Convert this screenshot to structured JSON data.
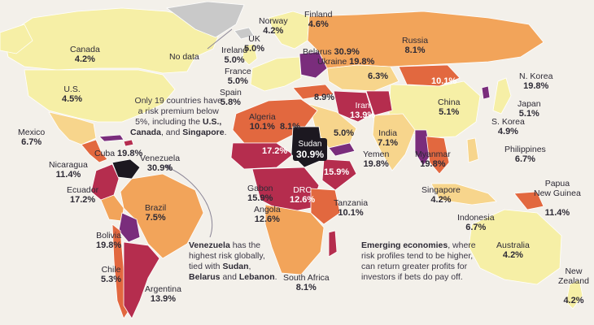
{
  "map": {
    "colors": {
      "background": "#f3f0ea",
      "ocean": "#f3f0ea",
      "no_data": "#c9c9c9",
      "low": "#f6efa6",
      "low_mid": "#f7d58c",
      "mid": "#f2a45a",
      "high": "#e2683f",
      "very_high": "#b52d4e",
      "extreme": "#7a2d7c",
      "top": "#1c1820"
    },
    "country_labels": [
      {
        "id": "canada",
        "name": "Canada",
        "value": "4.2%"
      },
      {
        "id": "us",
        "name": "U.S.",
        "value": "4.5%"
      },
      {
        "id": "mexico",
        "name": "Mexico",
        "value": "6.7%"
      },
      {
        "id": "cuba",
        "name": "Cuba",
        "value": "19.8%"
      },
      {
        "id": "nicaragua",
        "name": "Nicaragua",
        "value": "11.4%"
      },
      {
        "id": "venezuela",
        "name": "Venezuela",
        "value": "30.9%"
      },
      {
        "id": "ecuador",
        "name": "Ecuador",
        "value": "17.2%"
      },
      {
        "id": "brazil",
        "name": "Brazil",
        "value": "7.5%"
      },
      {
        "id": "bolivia",
        "name": "Bolivia",
        "value": "19.8%"
      },
      {
        "id": "chile",
        "name": "Chile",
        "value": "5.3%"
      },
      {
        "id": "argentina",
        "name": "Argentina",
        "value": "13.9%"
      },
      {
        "id": "norway",
        "name": "Norway",
        "value": "4.2%"
      },
      {
        "id": "finland",
        "name": "Finland",
        "value": "4.6%"
      },
      {
        "id": "uk",
        "name": "UK",
        "value": "5.0%"
      },
      {
        "id": "ireland",
        "name": "Ireland",
        "value": "5.0%"
      },
      {
        "id": "france",
        "name": "France",
        "value": "5.0%"
      },
      {
        "id": "spain",
        "name": "Spain",
        "value": "5.8%"
      },
      {
        "id": "belarus",
        "name": "Belarus",
        "value": "30.9%"
      },
      {
        "id": "ukraine",
        "name": "Ukraine",
        "value": "19.8%"
      },
      {
        "id": "russia",
        "name": "Russia",
        "value": "8.1%"
      },
      {
        "id": "algeria",
        "name": "Algeria",
        "value": "10.1%"
      },
      {
        "id": "sudan",
        "name": "Sudan",
        "value": "30.9%"
      },
      {
        "id": "iran",
        "name": "Iran",
        "value": "13.9%"
      },
      {
        "id": "india",
        "name": "India",
        "value": "7.1%"
      },
      {
        "id": "china",
        "name": "China",
        "value": "5.1%"
      },
      {
        "id": "japan",
        "name": "Japan",
        "value": "5.1%"
      },
      {
        "id": "nkorea",
        "name": "N. Korea",
        "value": "19.8%"
      },
      {
        "id": "skorea",
        "name": "S. Korea",
        "value": "4.9%"
      },
      {
        "id": "yemen",
        "name": "Yemen",
        "value": "19.8%"
      },
      {
        "id": "myanmar",
        "name": "Myanmar",
        "value": "19.8%"
      },
      {
        "id": "philippines",
        "name": "Philippines",
        "value": "6.7%"
      },
      {
        "id": "singapore",
        "name": "Singapore",
        "value": "4.2%"
      },
      {
        "id": "indonesia",
        "name": "Indonesia",
        "value": "6.7%"
      },
      {
        "id": "png",
        "name": "Papua\nNew Guinea",
        "value": "11.4%"
      },
      {
        "id": "australia",
        "name": "Australia",
        "value": "4.2%"
      },
      {
        "id": "nz",
        "name": "New\nZealand",
        "value": "4.2%"
      },
      {
        "id": "gabon",
        "name": "Gabon",
        "value": "15.9%"
      },
      {
        "id": "drc",
        "name": "DRC",
        "value": "12.6%"
      },
      {
        "id": "angola",
        "name": "Angola",
        "value": "12.6%"
      },
      {
        "id": "tanzania",
        "name": "Tanzania",
        "value": "10.1%"
      },
      {
        "id": "southafrica",
        "name": "South Africa",
        "value": "8.1%"
      }
    ],
    "value_only_labels": [
      {
        "id": "central-asia",
        "value": "6.3%"
      },
      {
        "id": "mongolia-area",
        "value": "10.1%"
      },
      {
        "id": "turkey-area",
        "value": "8.9%"
      },
      {
        "id": "libya-egypt",
        "value": "8.1%"
      },
      {
        "id": "mali-niger",
        "value": "17.2%"
      },
      {
        "id": "saudi",
        "value": "5.0%"
      },
      {
        "id": "ethiopia-somalia",
        "value": "15.9%"
      }
    ],
    "no_data_label": "No data"
  },
  "annotations": {
    "low_risk_note": {
      "line1": "Only 19 countries have",
      "line2": "a risk premium below",
      "line3_pre": "5%, including the ",
      "line3_b": "U.S.,",
      "line4_b1": "Canada",
      "line4_mid": ", and ",
      "line4_b2": "Singapore",
      "line4_end": "."
    },
    "venezuela_note": {
      "b1": "Venezuela",
      "t1": " has the",
      "t2": "highest risk globally,",
      "t3": "tied with ",
      "b2": "Sudan",
      "t4": ",",
      "b3": "Belarus",
      "t5": " and ",
      "b4": "Lebanon",
      "t6": "."
    },
    "emerging_note": {
      "b1": "Emerging economies",
      "t1": ", where",
      "t2": "risk profiles tend to be higher,",
      "t3": "can return greater profits for",
      "t4": "investors if bets do pay off."
    }
  }
}
